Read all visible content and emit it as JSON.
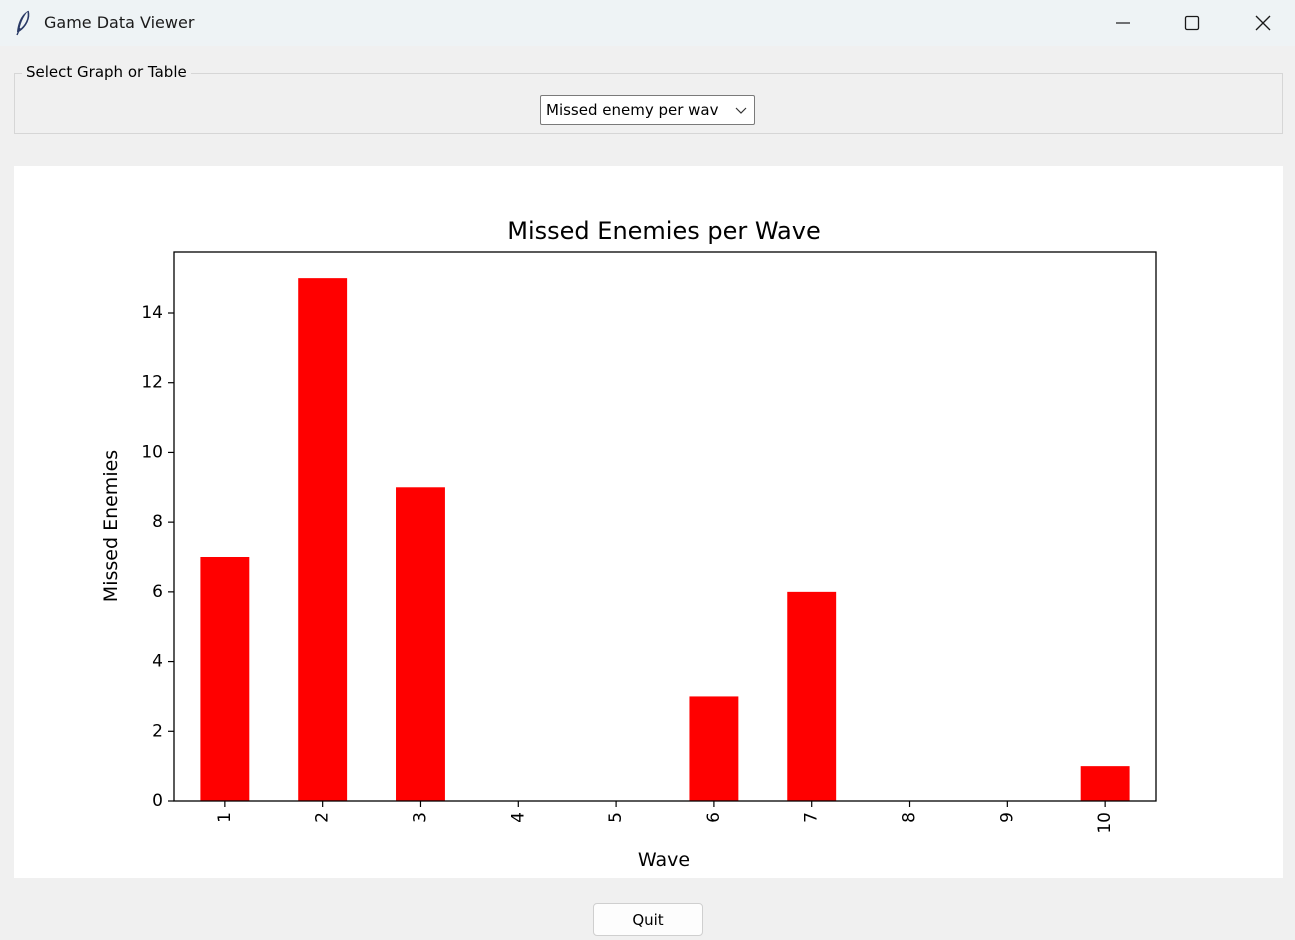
{
  "window": {
    "title": "Game Data Viewer",
    "icon": "feather-icon",
    "controls": [
      "minimize-icon",
      "maximize-icon",
      "close-icon"
    ]
  },
  "selector": {
    "group_label": "Select Graph or Table",
    "selected": "Missed enemy per wav"
  },
  "chart_data": {
    "type": "bar",
    "title": "Missed Enemies per Wave",
    "xlabel": "Wave",
    "ylabel": "Missed Enemies",
    "categories": [
      "1",
      "2",
      "3",
      "4",
      "5",
      "6",
      "7",
      "8",
      "9",
      "10"
    ],
    "values": [
      7,
      15,
      9,
      0,
      0,
      3,
      6,
      0,
      0,
      1
    ],
    "yticks": [
      "0",
      "2",
      "4",
      "6",
      "8",
      "10",
      "12",
      "14"
    ],
    "ylim": [
      0,
      15.75
    ],
    "bar_color": "#ff0000",
    "grid": false,
    "xtick_rotation": 90
  },
  "footer": {
    "quit_label": "Quit"
  }
}
